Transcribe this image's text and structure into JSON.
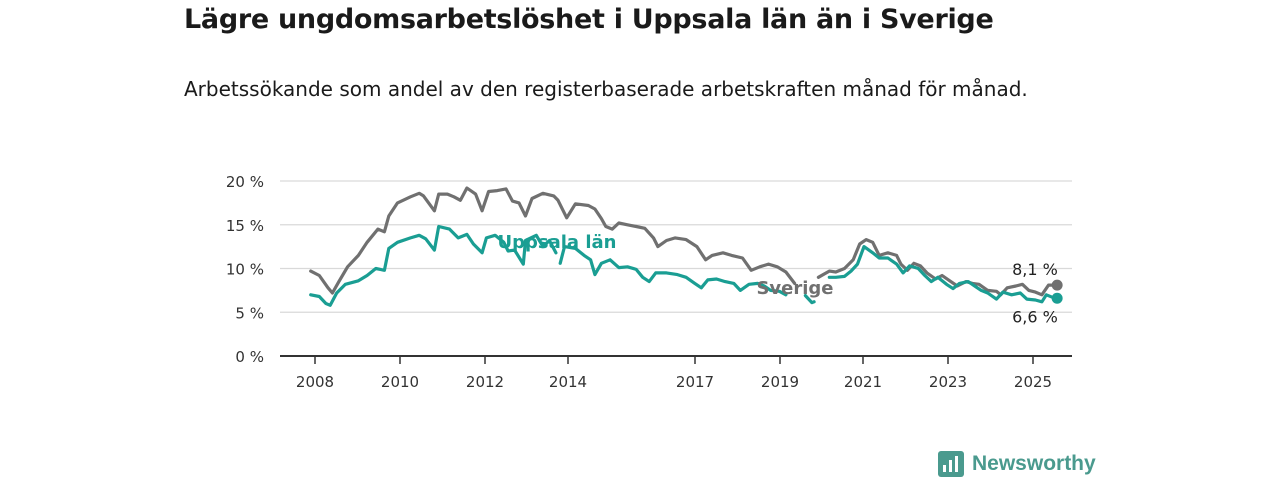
{
  "title": "Lägre ungdomsarbetslöshet i Uppsala län än i Sverige",
  "subtitle": "Arbetssökande som andel av den registerbaserade arbetskraften månad för månad.",
  "brand": {
    "name": "Newsworthy",
    "color": "#4a9a8e"
  },
  "chart_data": {
    "type": "line",
    "title": "Lägre ungdomsarbetslöshet i Uppsala län än i Sverige",
    "subtitle": "Arbetssökande som andel av den registerbaserade arbetskraften månad för månad.",
    "xlabel": "",
    "ylabel": "",
    "xlim": [
      2008,
      2025.6
    ],
    "ylim": [
      0,
      20
    ],
    "x_ticks": [
      2008,
      2010,
      2012,
      2014,
      2017,
      2019,
      2021,
      2023,
      2025
    ],
    "y_ticks": [
      {
        "value": 0,
        "label": "0 %"
      },
      {
        "value": 5,
        "label": "5 %"
      },
      {
        "value": 10,
        "label": "10 %"
      },
      {
        "value": 15,
        "label": "15 %"
      },
      {
        "value": 20,
        "label": "20 %"
      }
    ],
    "grid": true,
    "series": [
      {
        "name": "Sverige",
        "color": "#707070",
        "end_label": "8,1 %",
        "points": [
          [
            2007.9,
            9.7
          ],
          [
            2008.1,
            9.2
          ],
          [
            2008.3,
            7.8
          ],
          [
            2008.4,
            7.2
          ],
          [
            2008.55,
            8.5
          ],
          [
            2008.75,
            10.2
          ],
          [
            2009.0,
            11.5
          ],
          [
            2009.2,
            13.0
          ],
          [
            2009.45,
            14.5
          ],
          [
            2009.6,
            14.2
          ],
          [
            2009.7,
            16.0
          ],
          [
            2009.9,
            17.5
          ],
          [
            2010.2,
            18.2
          ],
          [
            2010.4,
            18.6
          ],
          [
            2010.5,
            18.3
          ],
          [
            2010.75,
            16.6
          ],
          [
            2010.85,
            18.5
          ],
          [
            2011.05,
            18.5
          ],
          [
            2011.2,
            18.2
          ],
          [
            2011.35,
            17.8
          ],
          [
            2011.5,
            19.2
          ],
          [
            2011.7,
            18.5
          ],
          [
            2011.85,
            16.6
          ],
          [
            2012.0,
            18.8
          ],
          [
            2012.2,
            18.9
          ],
          [
            2012.4,
            19.1
          ],
          [
            2012.55,
            17.7
          ],
          [
            2012.7,
            17.5
          ],
          [
            2012.85,
            16.0
          ],
          [
            2013.0,
            18.0
          ],
          [
            2013.25,
            18.6
          ],
          [
            2013.5,
            18.3
          ],
          [
            2013.6,
            17.8
          ],
          [
            2013.8,
            15.8
          ],
          [
            2014.0,
            17.4
          ],
          [
            2014.3,
            17.2
          ],
          [
            2014.45,
            16.8
          ],
          [
            2014.6,
            15.7
          ],
          [
            2014.7,
            14.8
          ],
          [
            2014.85,
            14.5
          ],
          [
            2015.0,
            15.2
          ],
          [
            2015.2,
            15.0
          ],
          [
            2015.4,
            14.8
          ],
          [
            2015.6,
            14.6
          ],
          [
            2015.8,
            13.5
          ],
          [
            2015.9,
            12.5
          ],
          [
            2016.1,
            13.2
          ],
          [
            2016.3,
            13.5
          ],
          [
            2016.55,
            13.3
          ],
          [
            2016.8,
            12.5
          ],
          [
            2017.0,
            11.0
          ],
          [
            2017.15,
            11.5
          ],
          [
            2017.4,
            11.8
          ],
          [
            2017.6,
            11.5
          ],
          [
            2017.85,
            11.2
          ],
          [
            2018.05,
            9.8
          ],
          [
            2018.25,
            10.2
          ],
          [
            2018.45,
            10.5
          ],
          [
            2018.65,
            10.2
          ],
          [
            2018.85,
            9.6
          ],
          [
            2019.05,
            8.3
          ]
        ],
        "segment2": [
          [
            2019.6,
            9.0
          ],
          [
            2019.85,
            9.7
          ],
          [
            2020.0,
            9.6
          ],
          [
            2020.2,
            10.0
          ],
          [
            2020.4,
            11.0
          ],
          [
            2020.55,
            12.8
          ],
          [
            2020.7,
            13.3
          ],
          [
            2020.85,
            13.0
          ],
          [
            2021.0,
            11.5
          ],
          [
            2021.2,
            11.8
          ],
          [
            2021.4,
            11.5
          ],
          [
            2021.5,
            10.5
          ],
          [
            2021.65,
            9.8
          ],
          [
            2021.8,
            10.6
          ],
          [
            2021.95,
            10.3
          ],
          [
            2022.1,
            9.5
          ],
          [
            2022.3,
            8.8
          ],
          [
            2022.45,
            9.2
          ],
          [
            2022.65,
            8.5
          ],
          [
            2022.8,
            8.0
          ],
          [
            2023.0,
            8.5
          ],
          [
            2023.15,
            8.3
          ],
          [
            2023.3,
            8.2
          ],
          [
            2023.5,
            7.5
          ],
          [
            2023.7,
            7.4
          ],
          [
            2023.8,
            7.0
          ],
          [
            2023.95,
            7.8
          ],
          [
            2024.15,
            8.0
          ],
          [
            2024.3,
            8.2
          ],
          [
            2024.45,
            7.5
          ],
          [
            2024.6,
            7.3
          ],
          [
            2024.75,
            7.0
          ],
          [
            2024.9,
            8.1
          ],
          [
            2025.1,
            8.1
          ]
        ]
      },
      {
        "name": "Uppsala län",
        "color": "#1a9e93",
        "end_label": "6,6 %",
        "points": [
          [
            2007.9,
            7.0
          ],
          [
            2008.1,
            6.8
          ],
          [
            2008.25,
            6.0
          ],
          [
            2008.35,
            5.8
          ],
          [
            2008.5,
            7.2
          ],
          [
            2008.7,
            8.2
          ],
          [
            2009.0,
            8.6
          ],
          [
            2009.2,
            9.2
          ],
          [
            2009.4,
            10.0
          ],
          [
            2009.6,
            9.8
          ],
          [
            2009.7,
            12.3
          ],
          [
            2009.9,
            13.0
          ],
          [
            2010.2,
            13.5
          ],
          [
            2010.4,
            13.8
          ],
          [
            2010.55,
            13.4
          ],
          [
            2010.75,
            12.1
          ],
          [
            2010.85,
            14.8
          ],
          [
            2011.1,
            14.5
          ],
          [
            2011.3,
            13.5
          ],
          [
            2011.5,
            13.9
          ],
          [
            2011.65,
            12.8
          ],
          [
            2011.85,
            11.8
          ],
          [
            2011.95,
            13.5
          ],
          [
            2012.15,
            13.8
          ],
          [
            2012.35,
            13.0
          ],
          [
            2012.45,
            12.0
          ],
          [
            2012.6,
            12.1
          ],
          [
            2012.8,
            10.5
          ],
          [
            2012.85,
            13.2
          ],
          [
            2013.1,
            13.8
          ],
          [
            2013.25,
            12.5
          ],
          [
            2013.4,
            13.2
          ],
          [
            2013.55,
            11.8
          ]
        ],
        "segment2": [
          [
            2013.65,
            10.6
          ],
          [
            2013.75,
            12.5
          ],
          [
            2014.0,
            12.3
          ],
          [
            2014.2,
            11.5
          ],
          [
            2014.35,
            11.0
          ],
          [
            2014.45,
            9.3
          ],
          [
            2014.6,
            10.6
          ],
          [
            2014.8,
            11.0
          ],
          [
            2015.0,
            10.1
          ],
          [
            2015.2,
            10.2
          ],
          [
            2015.4,
            9.9
          ],
          [
            2015.55,
            9.0
          ],
          [
            2015.7,
            8.5
          ],
          [
            2015.85,
            9.5
          ],
          [
            2016.1,
            9.5
          ],
          [
            2016.35,
            9.3
          ],
          [
            2016.55,
            9.0
          ],
          [
            2016.75,
            8.3
          ],
          [
            2016.9,
            7.8
          ],
          [
            2017.05,
            8.7
          ],
          [
            2017.25,
            8.8
          ],
          [
            2017.45,
            8.5
          ],
          [
            2017.65,
            8.3
          ],
          [
            2017.8,
            7.5
          ],
          [
            2018.0,
            8.2
          ],
          [
            2018.2,
            8.3
          ],
          [
            2018.35,
            8.0
          ],
          [
            2018.5,
            7.5
          ],
          [
            2018.7,
            7.4
          ],
          [
            2018.85,
            7.0
          ]
        ],
        "segment3": [
          [
            2019.3,
            6.9
          ],
          [
            2019.45,
            6.1
          ],
          [
            2019.5,
            6.2
          ]
        ],
        "segment4": [
          [
            2019.85,
            9.0
          ],
          [
            2020.0,
            9.0
          ],
          [
            2020.2,
            9.1
          ],
          [
            2020.35,
            9.7
          ],
          [
            2020.5,
            10.5
          ],
          [
            2020.65,
            12.5
          ],
          [
            2020.85,
            11.8
          ],
          [
            2021.0,
            11.2
          ],
          [
            2021.2,
            11.2
          ],
          [
            2021.4,
            10.5
          ],
          [
            2021.55,
            9.5
          ],
          [
            2021.7,
            10.3
          ],
          [
            2021.9,
            10.0
          ],
          [
            2022.05,
            9.2
          ],
          [
            2022.2,
            8.5
          ],
          [
            2022.35,
            9.0
          ],
          [
            2022.55,
            8.2
          ],
          [
            2022.7,
            7.7
          ],
          [
            2022.85,
            8.3
          ],
          [
            2023.05,
            8.5
          ],
          [
            2023.2,
            8.0
          ],
          [
            2023.35,
            7.5
          ],
          [
            2023.5,
            7.2
          ],
          [
            2023.7,
            6.5
          ],
          [
            2023.85,
            7.3
          ],
          [
            2024.05,
            7.0
          ],
          [
            2024.25,
            7.2
          ],
          [
            2024.4,
            6.5
          ],
          [
            2024.6,
            6.4
          ],
          [
            2024.75,
            6.2
          ],
          [
            2024.85,
            7.0
          ],
          [
            2025.05,
            6.6
          ],
          [
            2025.1,
            6.6
          ]
        ]
      }
    ]
  }
}
